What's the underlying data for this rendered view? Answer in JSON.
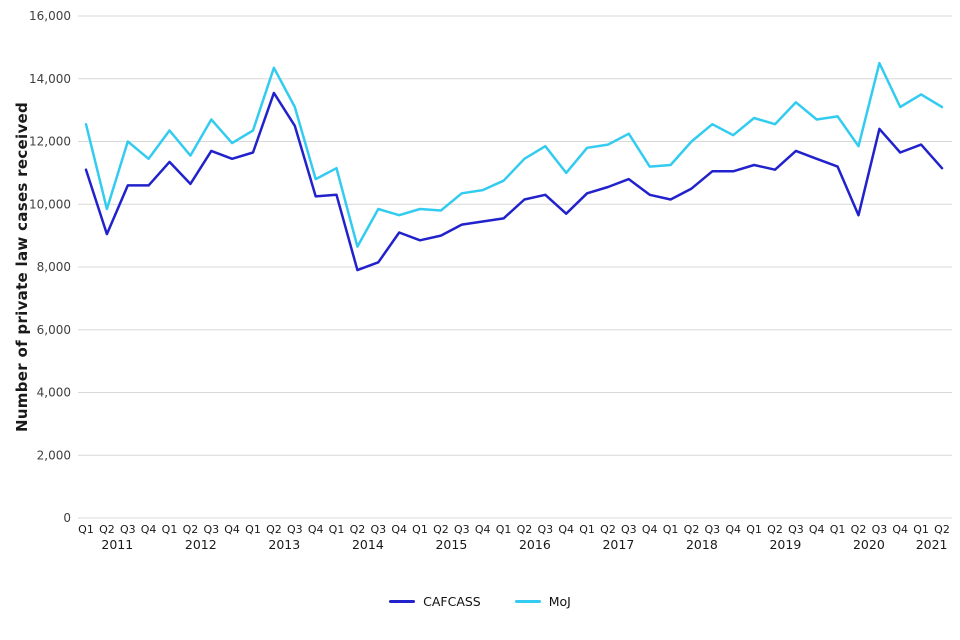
{
  "chart_data": {
    "type": "line",
    "title": "",
    "ylabel": "Number of private law cases received",
    "xlabel": "",
    "ylim": [
      0,
      16000
    ],
    "ytick_step": 2000,
    "grid": "horizontal",
    "legend_position": "bottom",
    "x_labels": [
      "Q1",
      "Q2",
      "Q3",
      "Q4",
      "Q1",
      "Q2",
      "Q3",
      "Q4",
      "Q1",
      "Q2",
      "Q3",
      "Q4",
      "Q1",
      "Q2",
      "Q3",
      "Q4",
      "Q1",
      "Q2",
      "Q3",
      "Q4",
      "Q1",
      "Q2",
      "Q3",
      "Q4",
      "Q1",
      "Q2",
      "Q3",
      "Q4",
      "Q1",
      "Q2",
      "Q3",
      "Q4",
      "Q1",
      "Q2",
      "Q3",
      "Q4",
      "Q1",
      "Q2",
      "Q3",
      "Q4",
      "Q1",
      "Q2"
    ],
    "year_groups": [
      {
        "year": "2011",
        "count": 4
      },
      {
        "year": "2012",
        "count": 4
      },
      {
        "year": "2013",
        "count": 4
      },
      {
        "year": "2014",
        "count": 4
      },
      {
        "year": "2015",
        "count": 4
      },
      {
        "year": "2016",
        "count": 4
      },
      {
        "year": "2017",
        "count": 4
      },
      {
        "year": "2018",
        "count": 4
      },
      {
        "year": "2019",
        "count": 4
      },
      {
        "year": "2020",
        "count": 4
      },
      {
        "year": "2021",
        "count": 2
      }
    ],
    "series": [
      {
        "name": "CAFCASS",
        "color": "#2222cc",
        "values": [
          11100,
          9050,
          10600,
          10600,
          11350,
          10650,
          11700,
          11450,
          11650,
          13550,
          12500,
          10250,
          10300,
          7900,
          8150,
          9100,
          8850,
          9000,
          9350,
          9450,
          9550,
          10150,
          10300,
          9700,
          10350,
          10550,
          10800,
          10300,
          10150,
          10500,
          11050,
          11050,
          11250,
          11100,
          11700,
          11450,
          11200,
          9650,
          12400,
          11650,
          11900,
          11150
        ]
      },
      {
        "name": "MoJ",
        "color": "#33ccf0",
        "values": [
          12550,
          9850,
          12000,
          11450,
          12350,
          11550,
          12700,
          11950,
          12350,
          14350,
          13100,
          10800,
          11150,
          8650,
          9850,
          9650,
          9850,
          9800,
          10350,
          10450,
          10750,
          11450,
          11850,
          11000,
          11800,
          11900,
          12250,
          11200,
          11250,
          12000,
          12550,
          12200,
          12750,
          12550,
          13250,
          12700,
          12800,
          11850,
          14500,
          13100,
          13500,
          13100
        ]
      }
    ]
  },
  "style": {
    "gridline_color": "#d8d8d8",
    "ytick_color": "#404040",
    "xtick_color": "#1a1a1a"
  }
}
